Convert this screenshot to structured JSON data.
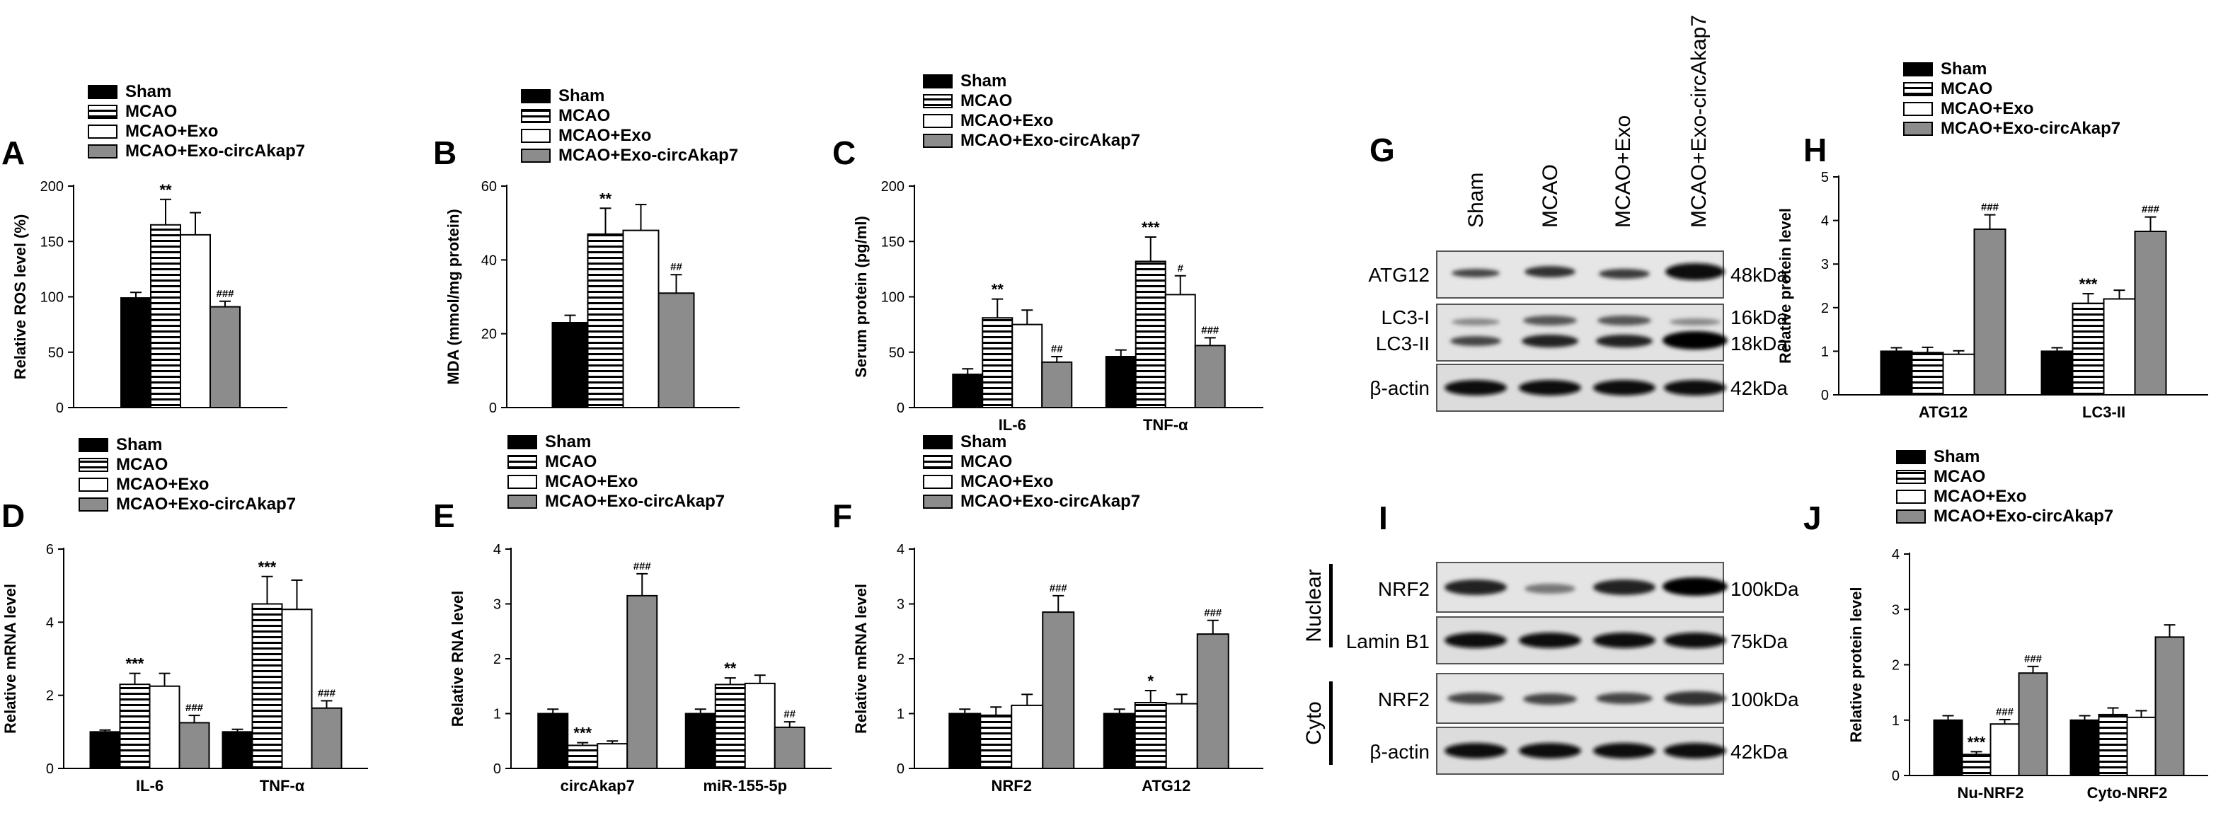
{
  "colors": {
    "sham": "#000000",
    "mcao": "#ffffff",
    "exo": "#ffffff",
    "circ": "#8c8c8c",
    "axis": "#000000"
  },
  "legend": [
    "Sham",
    "MCAO",
    "MCAO+Exo",
    "MCAO+Exo-circAkap7"
  ],
  "chart_data": [
    {
      "id": "A",
      "type": "bar",
      "panel_label": "A",
      "ylabel": "Relative ROS level (%)",
      "ylim": [
        0,
        200
      ],
      "yticks": [
        0,
        50,
        100,
        150,
        200
      ],
      "categories": [
        ""
      ],
      "series": [
        {
          "name": "Sham",
          "values": [
            99
          ],
          "err": [
            5
          ],
          "sig": [
            ""
          ]
        },
        {
          "name": "MCAO",
          "values": [
            165
          ],
          "err": [
            23
          ],
          "sig": [
            "**"
          ]
        },
        {
          "name": "MCAO+Exo",
          "values": [
            156
          ],
          "err": [
            20
          ],
          "sig": [
            ""
          ]
        },
        {
          "name": "MCAO+Exo-circAkap7",
          "values": [
            91
          ],
          "err": [
            5
          ],
          "sig": [
            "###"
          ]
        }
      ]
    },
    {
      "id": "B",
      "type": "bar",
      "panel_label": "B",
      "ylabel": "MDA (mmol/mg protein)",
      "ylim": [
        0,
        60
      ],
      "yticks": [
        0,
        20,
        40,
        60
      ],
      "categories": [
        ""
      ],
      "series": [
        {
          "name": "Sham",
          "values": [
            23
          ],
          "err": [
            2
          ],
          "sig": [
            ""
          ]
        },
        {
          "name": "MCAO",
          "values": [
            47
          ],
          "err": [
            7
          ],
          "sig": [
            "**"
          ]
        },
        {
          "name": "MCAO+Exo",
          "values": [
            48
          ],
          "err": [
            7
          ],
          "sig": [
            ""
          ]
        },
        {
          "name": "MCAO+Exo-circAkap7",
          "values": [
            31
          ],
          "err": [
            5
          ],
          "sig": [
            "##"
          ]
        }
      ]
    },
    {
      "id": "C",
      "type": "bar",
      "panel_label": "C",
      "ylabel": "Serum protein (pg/ml)",
      "ylim": [
        0,
        200
      ],
      "yticks": [
        0,
        50,
        100,
        150,
        200
      ],
      "categories": [
        "IL-6",
        "TNF-α"
      ],
      "series": [
        {
          "name": "Sham",
          "values": [
            30,
            46
          ],
          "err": [
            5,
            6
          ],
          "sig": [
            "",
            ""
          ]
        },
        {
          "name": "MCAO",
          "values": [
            81,
            132
          ],
          "err": [
            17,
            22
          ],
          "sig": [
            "**",
            "***"
          ]
        },
        {
          "name": "MCAO+Exo",
          "values": [
            75,
            102
          ],
          "err": [
            13,
            17
          ],
          "sig": [
            "",
            "#"
          ]
        },
        {
          "name": "MCAO+Exo-circAkap7",
          "values": [
            41,
            56
          ],
          "err": [
            5,
            7
          ],
          "sig": [
            "##",
            "###"
          ]
        }
      ]
    },
    {
      "id": "D",
      "type": "bar",
      "panel_label": "D",
      "ylabel": "Relative mRNA level",
      "ylim": [
        0,
        6
      ],
      "yticks": [
        0,
        2,
        4,
        6
      ],
      "categories": [
        "IL-6",
        "TNF-α"
      ],
      "series": [
        {
          "name": "Sham",
          "values": [
            1.0,
            1.0
          ],
          "err": [
            0.05,
            0.07
          ],
          "sig": [
            "",
            ""
          ]
        },
        {
          "name": "MCAO",
          "values": [
            2.3,
            4.5
          ],
          "err": [
            0.3,
            0.75
          ],
          "sig": [
            "***",
            "***"
          ]
        },
        {
          "name": "MCAO+Exo",
          "values": [
            2.25,
            4.35
          ],
          "err": [
            0.35,
            0.8
          ],
          "sig": [
            "",
            ""
          ]
        },
        {
          "name": "MCAO+Exo-circAkap7",
          "values": [
            1.25,
            1.65
          ],
          "err": [
            0.2,
            0.2
          ],
          "sig": [
            "###",
            "###"
          ]
        }
      ]
    },
    {
      "id": "E",
      "type": "bar",
      "panel_label": "E",
      "ylabel": "Relative RNA level",
      "ylim": [
        0,
        4
      ],
      "yticks": [
        0,
        1,
        2,
        3,
        4
      ],
      "categories": [
        "circAkap7",
        "miR-155-5p"
      ],
      "series": [
        {
          "name": "Sham",
          "values": [
            1.0,
            1.0
          ],
          "err": [
            0.08,
            0.08
          ],
          "sig": [
            "",
            ""
          ]
        },
        {
          "name": "MCAO",
          "values": [
            0.42,
            1.53
          ],
          "err": [
            0.05,
            0.12
          ],
          "sig": [
            "***",
            "**"
          ]
        },
        {
          "name": "MCAO+Exo",
          "values": [
            0.45,
            1.55
          ],
          "err": [
            0.05,
            0.15
          ],
          "sig": [
            "",
            ""
          ]
        },
        {
          "name": "MCAO+Exo-circAkap7",
          "values": [
            3.15,
            0.75
          ],
          "err": [
            0.4,
            0.1
          ],
          "sig": [
            "###",
            "##"
          ]
        }
      ]
    },
    {
      "id": "F",
      "type": "bar",
      "panel_label": "F",
      "ylabel": "Relative mRNA level",
      "ylim": [
        0,
        4
      ],
      "yticks": [
        0,
        1,
        2,
        3,
        4
      ],
      "categories": [
        "NRF2",
        "ATG12"
      ],
      "series": [
        {
          "name": "Sham",
          "values": [
            1.0,
            1.0
          ],
          "err": [
            0.08,
            0.08
          ],
          "sig": [
            "",
            ""
          ]
        },
        {
          "name": "MCAO",
          "values": [
            0.97,
            1.2
          ],
          "err": [
            0.15,
            0.22
          ],
          "sig": [
            "",
            "*"
          ]
        },
        {
          "name": "MCAO+Exo",
          "values": [
            1.15,
            1.18
          ],
          "err": [
            0.2,
            0.17
          ],
          "sig": [
            "",
            ""
          ]
        },
        {
          "name": "MCAO+Exo-circAkap7",
          "values": [
            2.85,
            2.45
          ],
          "err": [
            0.3,
            0.25
          ],
          "sig": [
            "###",
            "###"
          ]
        }
      ]
    },
    {
      "id": "H",
      "type": "bar",
      "panel_label": "H",
      "ylabel": "Relative protein level",
      "ylim": [
        0,
        5
      ],
      "yticks": [
        0,
        1,
        2,
        3,
        4,
        5
      ],
      "categories": [
        "ATG12",
        "LC3-II"
      ],
      "series": [
        {
          "name": "Sham",
          "values": [
            1.0,
            1.0
          ],
          "err": [
            0.08,
            0.08
          ],
          "sig": [
            "",
            ""
          ]
        },
        {
          "name": "MCAO",
          "values": [
            0.97,
            2.1
          ],
          "err": [
            0.12,
            0.22
          ],
          "sig": [
            "",
            "***"
          ]
        },
        {
          "name": "MCAO+Exo",
          "values": [
            0.93,
            2.2
          ],
          "err": [
            0.08,
            0.2
          ],
          "sig": [
            "",
            ""
          ]
        },
        {
          "name": "MCAO+Exo-circAkap7",
          "values": [
            3.8,
            3.75
          ],
          "err": [
            0.33,
            0.33
          ],
          "sig": [
            "###",
            "###"
          ]
        }
      ]
    },
    {
      "id": "J",
      "type": "bar",
      "panel_label": "J",
      "ylabel": "Relative protein level",
      "ylim": [
        0,
        4
      ],
      "yticks": [
        0,
        1,
        2,
        3,
        4
      ],
      "categories": [
        "Nu-NRF2",
        "Cyto-NRF2"
      ],
      "series": [
        {
          "name": "Sham",
          "values": [
            1.0,
            1.0
          ],
          "err": [
            0.08,
            0.08
          ],
          "sig": [
            "",
            ""
          ]
        },
        {
          "name": "MCAO",
          "values": [
            0.38,
            1.1
          ],
          "err": [
            0.05,
            0.12
          ],
          "sig": [
            "***",
            ""
          ]
        },
        {
          "name": "MCAO+Exo",
          "values": [
            0.93,
            1.05
          ],
          "err": [
            0.08,
            0.12
          ],
          "sig": [
            "###",
            ""
          ]
        },
        {
          "name": "MCAO+Exo-circAkap7",
          "values": [
            1.85,
            2.5
          ],
          "err": [
            0.12,
            0.22
          ],
          "sig": [
            "###",
            ""
          ]
        }
      ]
    }
  ],
  "blot_G": {
    "panel_label": "G",
    "lanes": [
      "Sham",
      "MCAO",
      "MCAO+Exo",
      "MCAO+Exo-circAkap7"
    ],
    "rows": [
      {
        "label": "ATG12",
        "kda": "48kDa"
      },
      {
        "label": "LC3-I",
        "kda": "16kDa"
      },
      {
        "label": "LC3-II",
        "kda": "18kDa"
      },
      {
        "label": "β-actin",
        "kda": "42kDa"
      }
    ]
  },
  "blot_I": {
    "panel_label": "I",
    "sections": [
      "Nuclear",
      "Cyto"
    ],
    "rows": [
      {
        "label": "NRF2",
        "kda": "100kDa"
      },
      {
        "label": "Lamin B1",
        "kda": "75kDa"
      },
      {
        "label": "NRF2",
        "kda": "100kDa"
      },
      {
        "label": "β-actin",
        "kda": "42kDa"
      }
    ]
  }
}
